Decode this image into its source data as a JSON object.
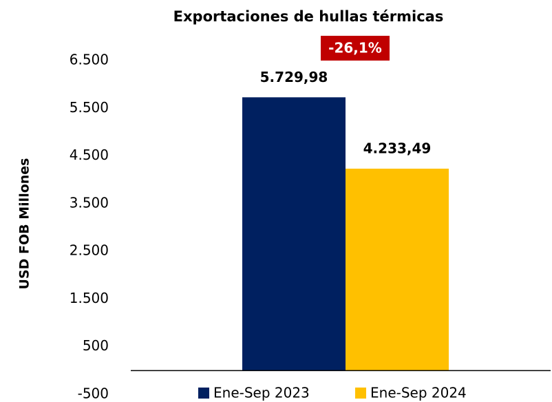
{
  "chart_data": {
    "type": "bar",
    "title": "Exportaciones de hullas térmicas",
    "y_label": "USD FOB Millones",
    "annotation": "-26,1%",
    "categories": [
      null
    ],
    "series": [
      {
        "name": "Ene-Sep 2023",
        "color": "#002060",
        "values": [
          5729.98
        ],
        "value_labels": [
          "5.729,98"
        ]
      },
      {
        "name": "Ene-Sep 2024",
        "color": "#ffc000",
        "values": [
          4233.49
        ],
        "value_labels": [
          "4.233,49"
        ]
      }
    ],
    "ylim": [
      -500,
      6500
    ],
    "yticks": [
      -500,
      500,
      {
        "value": 1500,
        "label": "1.500"
      },
      {
        "value": 2500,
        "label": "2.500"
      },
      {
        "value": 3500,
        "label": "3.500"
      },
      {
        "value": 4500,
        "label": "4.500"
      },
      {
        "value": 5500,
        "label": "5.500"
      },
      {
        "value": 6500,
        "label": "6.500"
      }
    ],
    "annotation_color": "#c00000",
    "grid": false,
    "legend": "bottom"
  }
}
